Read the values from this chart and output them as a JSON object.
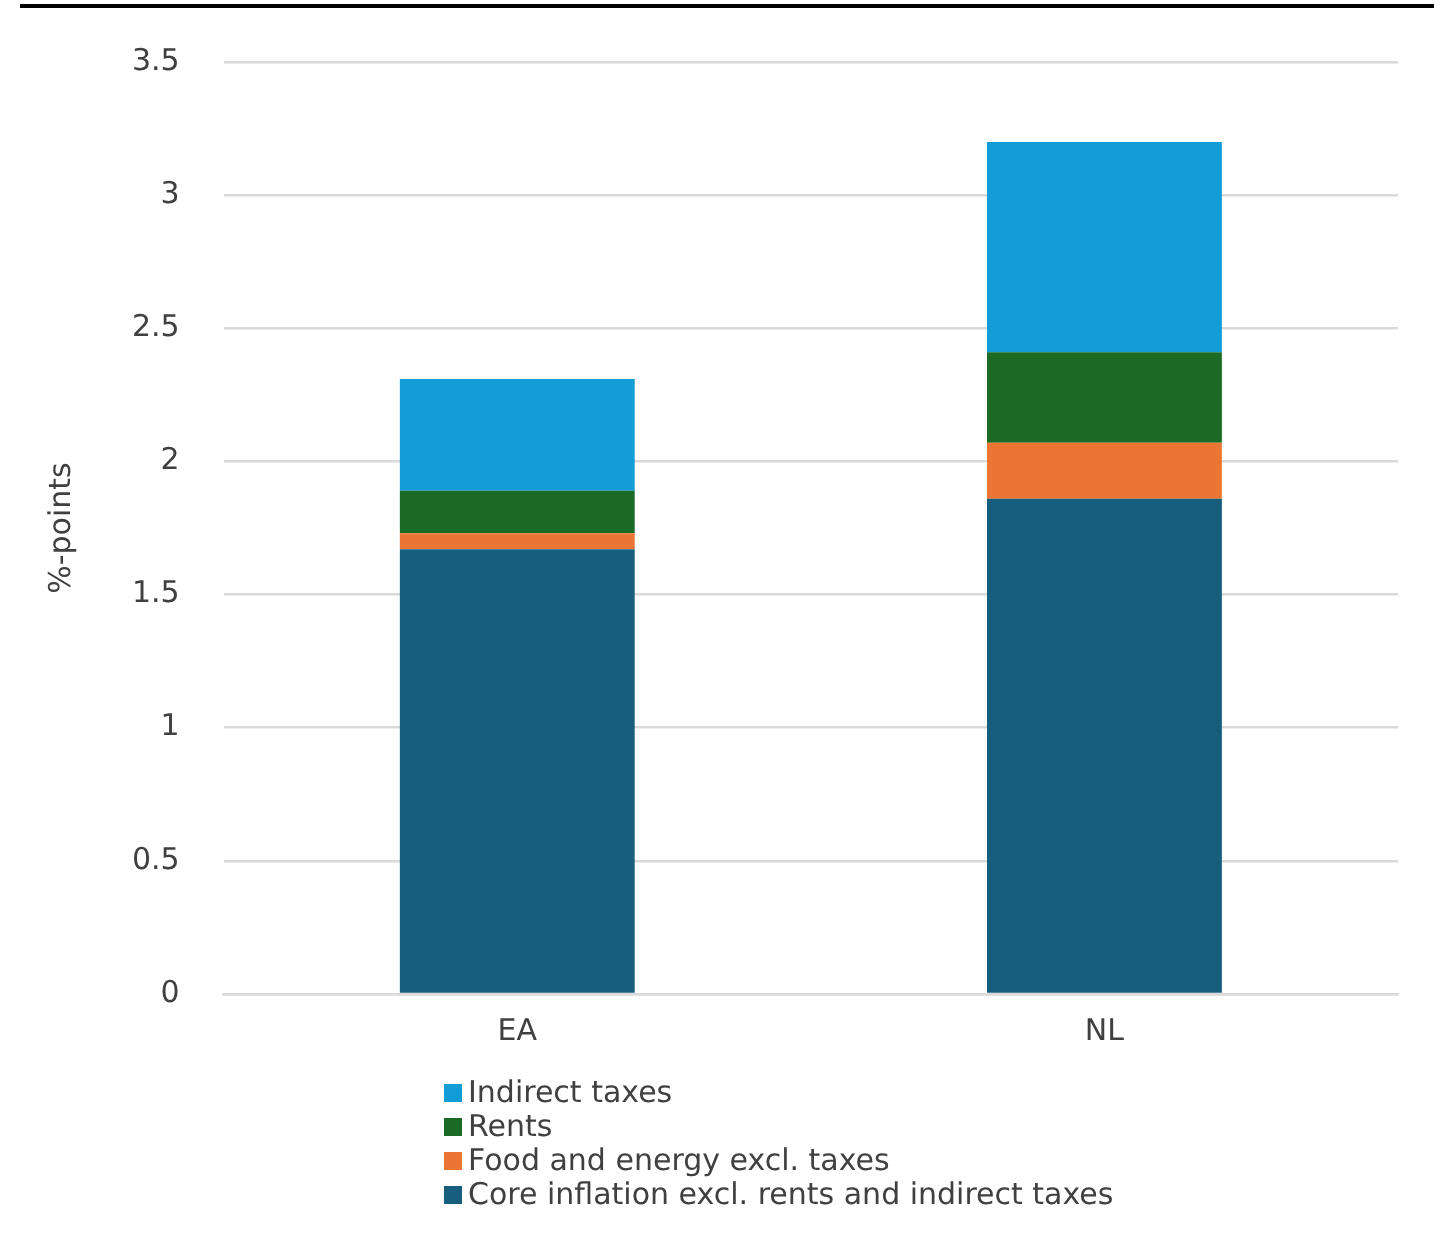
{
  "chart_data": {
    "type": "bar",
    "stacked": true,
    "ylabel": "%-points",
    "categories": [
      "EA",
      "NL"
    ],
    "series": [
      {
        "name": "Core inflation excl. rents and indirect taxes",
        "color": "#175e7e",
        "values": [
          1.67,
          1.86
        ]
      },
      {
        "name": "Food and energy excl. taxes",
        "color": "#eb7533",
        "values": [
          0.06,
          0.21
        ]
      },
      {
        "name": "Rents",
        "color": "#1b6b27",
        "values": [
          0.16,
          0.34
        ]
      },
      {
        "name": "Indirect taxes",
        "color": "#129dd6",
        "values": [
          0.42,
          0.79
        ]
      }
    ],
    "ylim": [
      0,
      3.5
    ],
    "yticks": [
      0,
      0.5,
      1,
      1.5,
      2,
      2.5,
      3,
      3.5
    ],
    "grid": "y",
    "legend": "bottom"
  }
}
